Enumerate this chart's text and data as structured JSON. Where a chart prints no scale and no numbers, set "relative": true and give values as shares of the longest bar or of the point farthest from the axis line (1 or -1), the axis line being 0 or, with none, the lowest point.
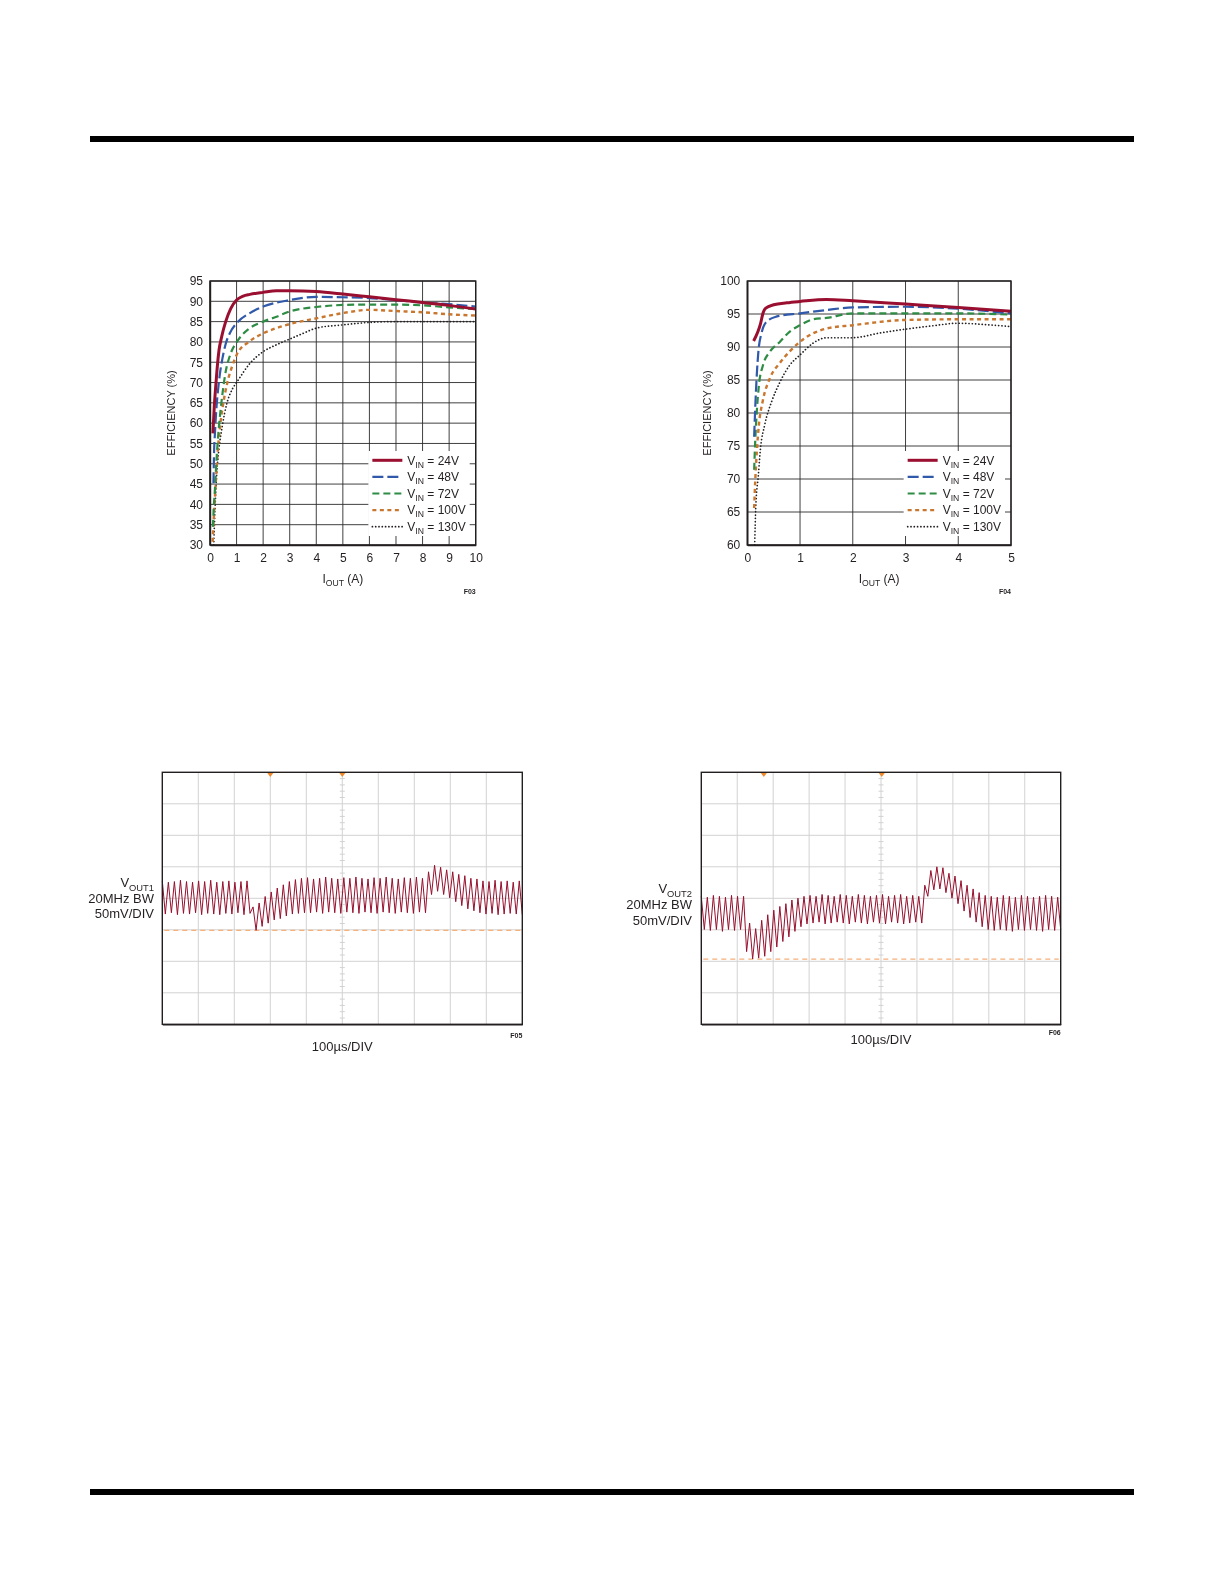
{
  "chart_data": [
    {
      "type": "line",
      "xlabel": "I$_{OUT}$ (A)",
      "ylabel": "EFFICIENCY (%)",
      "annotations": [
        "F03"
      ],
      "xlim": [
        0,
        10
      ],
      "xticks": [
        0,
        1,
        2,
        3,
        4,
        5,
        6,
        7,
        8,
        9,
        10
      ],
      "ylim": [
        30,
        95
      ],
      "yticks": [
        30,
        35,
        40,
        45,
        50,
        55,
        60,
        65,
        70,
        75,
        80,
        85,
        90,
        95
      ],
      "grid": true,
      "legend": "bottom right",
      "series": [
        {
          "name": "V$_{IN}$ = 24V",
          "color": "#9a0f30",
          "x": [
            0.11,
            0.16,
            0.22,
            0.28,
            0.34,
            0.44,
            0.59,
            0.78,
            1,
            1.25,
            1.5,
            2,
            2.5,
            3,
            4,
            5,
            6,
            7,
            8,
            9,
            10
          ],
          "values": [
            57.5,
            64,
            69.4,
            74.3,
            78,
            81.3,
            85,
            88.2,
            90.3,
            91.3,
            91.7,
            92.2,
            92.6,
            92.6,
            92.4,
            91.8,
            91.1,
            90.4,
            89.7,
            89,
            88.1
          ]
        },
        {
          "name": "V$_{IN}$ = 48V",
          "color": "#3059a9",
          "line_style": "dashed",
          "x": [
            0.13,
            0.15,
            0.19,
            0.24,
            0.3,
            0.37,
            0.47,
            0.59,
            0.75,
            1,
            1.5,
            2,
            3,
            4,
            5,
            6,
            7,
            8,
            9,
            10
          ],
          "values": [
            45.2,
            52,
            58,
            63.5,
            68,
            72,
            76,
            79.5,
            82.2,
            84.6,
            87.1,
            88.7,
            90.3,
            91.1,
            91,
            90.8,
            90.3,
            89.7,
            89.3,
            88.7
          ]
        },
        {
          "name": "V$_{IN}$ = 72V",
          "color": "#2f8c45",
          "line_style": "dashed",
          "x": [
            0.11,
            0.14,
            0.18,
            0.24,
            0.32,
            0.42,
            0.57,
            0.78,
            1,
            1.5,
            2,
            2.5,
            3,
            4,
            5,
            6,
            7,
            8,
            9,
            10
          ],
          "values": [
            34.5,
            39,
            43.1,
            50.5,
            57.9,
            64.5,
            71.9,
            77.2,
            79.9,
            83.4,
            85,
            86.2,
            87.5,
            88.6,
            89.1,
            89.2,
            89.2,
            89,
            88.5,
            88.1
          ]
        },
        {
          "name": "V$_{IN}$ = 100V",
          "color": "#c9762e",
          "line_style": "dashed",
          "x": [
            0.1,
            0.13,
            0.16,
            0.22,
            0.28,
            0.37,
            0.49,
            0.66,
            0.85,
            1,
            1.5,
            2,
            2.5,
            3,
            4,
            5,
            6,
            7,
            8,
            9,
            10
          ],
          "values": [
            30.8,
            35,
            39,
            45.6,
            52.2,
            58.7,
            64.5,
            70.2,
            74.3,
            76.8,
            80.2,
            82.1,
            83.4,
            84.4,
            85.8,
            87.1,
            87.9,
            87.6,
            87.3,
            86.8,
            86.5
          ]
        },
        {
          "name": "V$_{IN}$ = 130V",
          "color": "#231f20",
          "line_style": "dotted",
          "x": [
            0.14,
            0.19,
            0.25,
            0.34,
            0.47,
            0.62,
            0.85,
            1,
            1.5,
            2,
            2.5,
            3,
            3.5,
            4,
            5,
            6,
            7,
            8,
            9,
            10
          ],
          "values": [
            30,
            39,
            47.2,
            53.8,
            59.6,
            64.5,
            68.5,
            70,
            74.7,
            77.6,
            79.3,
            80.7,
            82.1,
            83.4,
            84.2,
            84.8,
            85,
            85,
            85,
            85
          ]
        }
      ]
    },
    {
      "type": "line",
      "xlabel": "I$_{OUT}$ (A)",
      "ylabel": "EFFICIENCY (%)",
      "annotations": [
        "F04"
      ],
      "xlim": [
        0,
        5
      ],
      "xticks": [
        0,
        1,
        2,
        3,
        4,
        5
      ],
      "ylim": [
        60,
        100
      ],
      "yticks": [
        60,
        65,
        70,
        75,
        80,
        85,
        90,
        95,
        100
      ],
      "grid": true,
      "legend": "bottom right",
      "series": [
        {
          "name": "V$_{IN}$ = 24V",
          "color": "#9a0f30",
          "x": [
            0.12,
            0.2,
            0.25,
            0.3,
            0.35,
            0.5,
            0.75,
            1,
            1.5,
            2,
            3,
            4,
            5
          ],
          "values": [
            90.9,
            92.3,
            93.5,
            95.2,
            95.9,
            96.4,
            96.7,
            96.9,
            97.2,
            97,
            96.5,
            96,
            95.4
          ]
        },
        {
          "name": "V$_{IN}$ = 48V",
          "color": "#3059a9",
          "line_style": "dashed",
          "x": [
            0.13,
            0.15,
            0.18,
            0.21,
            0.27,
            0.36,
            0.55,
            1,
            1.5,
            2,
            3,
            4,
            5
          ],
          "values": [
            76.4,
            80.7,
            85.8,
            89.3,
            92.1,
            93.8,
            94.6,
            95.1,
            95.6,
            96,
            96.1,
            95.8,
            95.1
          ]
        },
        {
          "name": "V$_{IN}$ = 72V",
          "color": "#2f8c45",
          "line_style": "dashed",
          "x": [
            0.13,
            0.15,
            0.18,
            0.22,
            0.3,
            0.43,
            0.62,
            0.8,
            1,
            1.25,
            1.5,
            2,
            3,
            4,
            5
          ],
          "values": [
            71.4,
            75.7,
            80.2,
            84.2,
            87.3,
            89.3,
            90.8,
            92.3,
            93.3,
            94.2,
            94.4,
            95.1,
            95.1,
            95.1,
            94.9
          ]
        },
        {
          "name": "V$_{IN}$ = 100V",
          "color": "#c9762e",
          "line_style": "dashed",
          "x": [
            0.13,
            0.15,
            0.18,
            0.22,
            0.29,
            0.43,
            0.62,
            0.8,
            1,
            1.5,
            2,
            3,
            4,
            5
          ],
          "values": [
            65.6,
            69.6,
            74.1,
            78.2,
            81.7,
            85.3,
            87.6,
            89.3,
            90.8,
            92.8,
            93.3,
            94.1,
            94.2,
            94.2
          ]
        },
        {
          "name": "V$_{IN}$ = 130V",
          "color": "#231f20",
          "line_style": "dotted",
          "x": [
            0.14,
            0.16,
            0.21,
            0.25,
            0.33,
            0.46,
            0.62,
            0.8,
            1,
            1.25,
            1.5,
            2,
            2.5,
            3,
            3.5,
            4,
            4.5,
            5
          ],
          "values": [
            60,
            65.6,
            70.6,
            74.6,
            78.2,
            81.7,
            84.7,
            87.2,
            88.8,
            90.6,
            91.4,
            91.4,
            92.1,
            92.7,
            93.2,
            93.6,
            93.4,
            93.1
          ]
        }
      ]
    },
    {
      "type": "line",
      "relative": true,
      "ylabel": "V$_{OUT1}$\n20MHz BW\n50mV/DIV",
      "xlabel": "100µs/DIV",
      "annotations": [
        "F05"
      ],
      "grid": true,
      "color": "#960f2d",
      "categories": [
        null,
        null,
        null,
        null,
        null,
        null,
        null,
        null,
        null,
        null,
        null,
        null,
        null,
        null,
        null,
        null,
        null,
        null,
        null,
        null,
        null,
        null,
        null,
        null,
        null,
        null,
        null,
        null,
        null,
        null,
        null,
        null,
        null,
        null,
        null,
        null,
        null,
        null,
        null,
        null,
        null,
        null,
        null,
        null,
        null,
        null,
        null,
        null,
        null,
        null,
        null,
        null,
        null,
        null,
        null,
        null,
        null,
        null,
        null,
        null,
        null,
        null,
        null,
        null,
        null,
        null,
        null,
        null,
        null,
        null,
        null,
        null,
        null,
        null,
        null,
        null,
        null,
        null,
        null,
        null,
        null,
        null,
        null,
        null,
        null,
        null,
        null,
        null,
        null,
        null,
        null,
        null,
        null,
        null,
        null,
        null,
        null,
        null,
        null,
        null,
        null,
        null,
        null,
        null,
        null,
        null,
        null,
        null,
        null,
        null,
        null,
        null,
        null,
        null,
        null,
        null,
        null,
        null,
        null,
        null
      ],
      "values": [
        0.76,
        0.25,
        0.74,
        0.27,
        0.75,
        0.24,
        0.77,
        0.26,
        0.75,
        0.25,
        0.74,
        0.27,
        0.76,
        0.24,
        0.75,
        0.26,
        0.77,
        0.25,
        0.74,
        0.24,
        0.75,
        0.26,
        0.76,
        0.25,
        0.74,
        0.27,
        0.75,
        0.24,
        0.76,
        0.26,
        0.36,
        0,
        0.42,
        0.06,
        0.52,
        0.11,
        0.59,
        0.16,
        0.65,
        0.18,
        0.7,
        0.22,
        0.75,
        0.25,
        0.78,
        0.26,
        0.8,
        0.27,
        0.81,
        0.27,
        0.79,
        0.28,
        0.8,
        0.26,
        0.82,
        0.28,
        0.8,
        0.27,
        0.79,
        0.26,
        0.81,
        0.28,
        0.8,
        0.27,
        0.82,
        0.26,
        0.8,
        0.28,
        0.79,
        0.27,
        0.81,
        0.26,
        0.8,
        0.28,
        0.82,
        0.27,
        0.8,
        0.26,
        0.79,
        0.28,
        0.81,
        0.27,
        0.8,
        0.26,
        0.82,
        0.28,
        0.8,
        0.27,
        0.9,
        0.55,
        1,
        0.6,
        0.97,
        0.55,
        0.93,
        0.5,
        0.9,
        0.44,
        0.86,
        0.38,
        0.84,
        0.33,
        0.8,
        0.3,
        0.79,
        0.27,
        0.76,
        0.25,
        0.75,
        0.26,
        0.77,
        0.24,
        0.75,
        0.25,
        0.76,
        0.26,
        0.74,
        0.25,
        0.76,
        0.24
      ],
      "ref_lines": [
        {
          "axis": "y",
          "value": 0,
          "color": "#f6b07a",
          "line_style": "dashed"
        }
      ]
    },
    {
      "type": "line",
      "relative": true,
      "ylabel": "V$_{OUT2}$\n20MHz BW\n50mV/DIV",
      "xlabel": "100µs/DIV",
      "annotations": [
        "F06"
      ],
      "grid": true,
      "color": "#960f2d",
      "categories": [
        null,
        null,
        null,
        null,
        null,
        null,
        null,
        null,
        null,
        null,
        null,
        null,
        null,
        null,
        null,
        null,
        null,
        null,
        null,
        null,
        null,
        null,
        null,
        null,
        null,
        null,
        null,
        null,
        null,
        null,
        null,
        null,
        null,
        null,
        null,
        null,
        null,
        null,
        null,
        null,
        null,
        null,
        null,
        null,
        null,
        null,
        null,
        null,
        null,
        null,
        null,
        null,
        null,
        null,
        null,
        null,
        null,
        null,
        null,
        null,
        null,
        null,
        null,
        null,
        null,
        null,
        null,
        null,
        null,
        null,
        null,
        null,
        null,
        null,
        null,
        null,
        null,
        null,
        null,
        null,
        null,
        null,
        null,
        null,
        null,
        null,
        null,
        null,
        null,
        null,
        null,
        null,
        null,
        null,
        null,
        null,
        null,
        null,
        null,
        null,
        null,
        null,
        null,
        null,
        null,
        null,
        null,
        null,
        null,
        null,
        null,
        null,
        null,
        null,
        null,
        null,
        null,
        null,
        null,
        null
      ],
      "values": [
        0.68,
        0.32,
        0.67,
        0.31,
        0.69,
        0.32,
        0.68,
        0.3,
        0.67,
        0.32,
        0.69,
        0.31,
        0.68,
        0.32,
        0.68,
        0.08,
        0.39,
        0,
        0.33,
        0.01,
        0.42,
        0.03,
        0.48,
        0.08,
        0.53,
        0.13,
        0.57,
        0.19,
        0.6,
        0.24,
        0.64,
        0.3,
        0.66,
        0.35,
        0.68,
        0.38,
        0.69,
        0.39,
        0.68,
        0.4,
        0.7,
        0.38,
        0.69,
        0.39,
        0.68,
        0.4,
        0.7,
        0.39,
        0.69,
        0.38,
        0.68,
        0.4,
        0.7,
        0.39,
        0.69,
        0.38,
        0.68,
        0.4,
        0.69,
        0.39,
        0.7,
        0.38,
        0.68,
        0.4,
        0.69,
        0.39,
        0.7,
        0.38,
        0.68,
        0.39,
        0.69,
        0.4,
        0.68,
        0.39,
        0.8,
        0.68,
        0.96,
        0.75,
        1,
        0.76,
        0.99,
        0.72,
        0.93,
        0.66,
        0.9,
        0.6,
        0.85,
        0.52,
        0.8,
        0.45,
        0.76,
        0.4,
        0.72,
        0.35,
        0.69,
        0.32,
        0.68,
        0.31,
        0.67,
        0.32,
        0.69,
        0.31,
        0.68,
        0.3,
        0.67,
        0.32,
        0.69,
        0.31,
        0.68,
        0.32,
        0.67,
        0.31,
        0.68,
        0.3,
        0.69,
        0.32,
        0.68,
        0.31,
        0.67,
        0.32
      ],
      "ref_lines": [
        {
          "axis": "y",
          "value": 0,
          "color": "#f6b07a",
          "line_style": "dashed"
        }
      ]
    }
  ]
}
